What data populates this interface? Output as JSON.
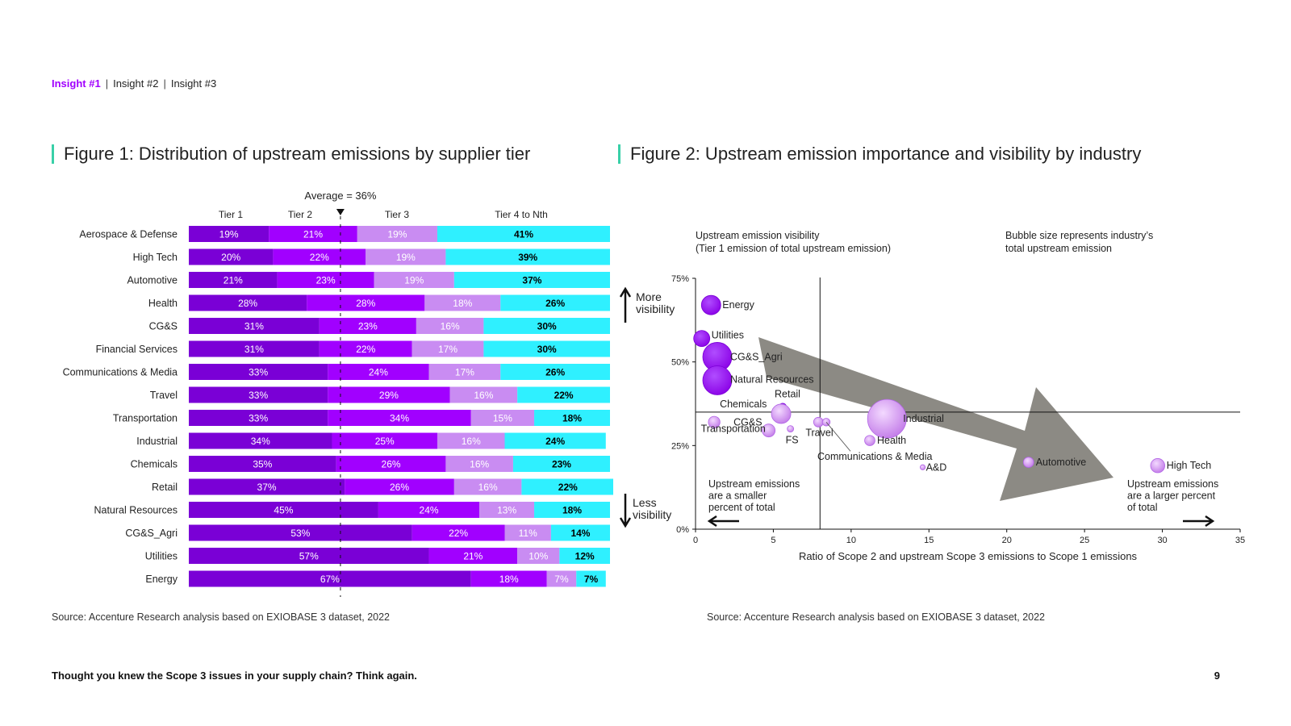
{
  "nav": {
    "active": "Insight #1",
    "items": [
      "Insight #2",
      "Insight #3"
    ]
  },
  "figure1": {
    "title": "Figure 1: Distribution of upstream emissions by supplier tier",
    "source": "Source: Accenture Research analysis based on EXIOBASE 3 dataset, 2022"
  },
  "figure2": {
    "title": "Figure 2: Upstream emission importance and visibility by industry",
    "source": "Source: Accenture Research analysis based on EXIOBASE 3 dataset, 2022"
  },
  "footer": {
    "text": "Thought you knew the Scope 3 issues in your supply chain? Think again.",
    "page": "9"
  },
  "colors": {
    "tier1": "#7a00d6",
    "tier2": "#a100ff",
    "tier3": "#c98cf2",
    "tier4": "#2ff0ff",
    "accent": "#a100ff",
    "titleBar": "#39d0a8",
    "arrow": "#8c8a84"
  },
  "chart_data": [
    {
      "type": "bar",
      "orientation": "horizontal-stacked-100",
      "title": "Figure 1: Distribution of upstream emissions by supplier tier",
      "average_label": "Average = 36%",
      "average_value": 36,
      "series_names": [
        "Tier 1",
        "Tier 2",
        "Tier 3",
        "Tier 4 to Nth"
      ],
      "categories": [
        "Aerospace & Defense",
        "High Tech",
        "Automotive",
        "Health",
        "CG&S",
        "Financial Services",
        "Communications & Media",
        "Travel",
        "Transportation",
        "Industrial",
        "Chemicals",
        "Retail",
        "Natural Resources",
        "CG&S_Agri",
        "Utilities",
        "Energy"
      ],
      "series": [
        {
          "name": "Tier 1",
          "values": [
            19,
            20,
            21,
            28,
            31,
            31,
            33,
            33,
            33,
            34,
            35,
            37,
            45,
            53,
            57,
            67
          ]
        },
        {
          "name": "Tier 2",
          "values": [
            21,
            22,
            23,
            28,
            23,
            22,
            24,
            29,
            34,
            25,
            26,
            26,
            24,
            22,
            21,
            18
          ]
        },
        {
          "name": "Tier 3",
          "values": [
            19,
            19,
            19,
            18,
            16,
            17,
            17,
            16,
            15,
            16,
            16,
            16,
            13,
            11,
            10,
            7
          ]
        },
        {
          "name": "Tier 4 to Nth",
          "values": [
            41,
            39,
            37,
            26,
            30,
            30,
            26,
            22,
            18,
            24,
            23,
            22,
            18,
            14,
            12,
            7
          ]
        }
      ]
    },
    {
      "type": "scatter",
      "subtype": "bubble",
      "title": "Figure 2: Upstream emission importance and visibility by industry",
      "xlabel": "Ratio of Scope 2 and upstream Scope 3 emissions to Scope 1 emissions",
      "ylabel_lines": [
        "Upstream emission visibility",
        "(Tier 1 emission of total upstream emission)"
      ],
      "bubble_note_lines": [
        "Bubble size represents industry’s",
        "total upstream emission"
      ],
      "xlim": [
        0,
        35
      ],
      "ylim": [
        0,
        75
      ],
      "x_ticks": [
        "0",
        "5",
        "10",
        "15",
        "20",
        "25",
        "30",
        "35"
      ],
      "x_tick_values": [
        0,
        5,
        10,
        15,
        20,
        25,
        30,
        35
      ],
      "y_ticks": [
        "0%",
        "25%",
        "50%",
        "75%"
      ],
      "y_tick_values": [
        0,
        25,
        50,
        75
      ],
      "ref_x": 8,
      "ref_y": 35,
      "more_visibility": [
        "More",
        "visibility"
      ],
      "less_visibility": [
        "Less",
        "visibility"
      ],
      "left_note": [
        "Upstream emissions",
        "are a smaller",
        "percent of total"
      ],
      "right_note": [
        "Upstream emissions",
        "are a larger percent",
        "of total"
      ],
      "points": [
        {
          "label": "Energy",
          "x": 1,
          "y": 67,
          "size": 3
        },
        {
          "label": "Utilities",
          "x": 0.4,
          "y": 57,
          "size": 2.5
        },
        {
          "label": "CG&S_Agri",
          "x": 1.4,
          "y": 51.5,
          "size": 4.5
        },
        {
          "label": "Natural Resources",
          "x": 1.4,
          "y": 44.5,
          "size": 4.5
        },
        {
          "label": "Retail",
          "x": 5.6,
          "y": 36.5,
          "size": 1.2
        },
        {
          "label": "Chemicals",
          "x": 5.5,
          "y": 34.5,
          "size": 3
        },
        {
          "label": "CG&S",
          "x": 1.2,
          "y": 32,
          "size": 1.8
        },
        {
          "label": "Transportation",
          "x": 4.7,
          "y": 29.5,
          "size": 2
        },
        {
          "label": "FS",
          "x": 6.1,
          "y": 30,
          "size": 1
        },
        {
          "label": "Travel",
          "x": 7.9,
          "y": 32,
          "size": 1.5
        },
        {
          "label": "Communications & Media",
          "x": 8.4,
          "y": 32,
          "size": 1.2
        },
        {
          "label": "Industrial",
          "x": 12.3,
          "y": 33,
          "size": 6
        },
        {
          "label": "Health",
          "x": 11.2,
          "y": 26.5,
          "size": 1.6
        },
        {
          "label": "A&D",
          "x": 14.6,
          "y": 18.5,
          "size": 0.8
        },
        {
          "label": "Automotive",
          "x": 21.4,
          "y": 20,
          "size": 1.6
        },
        {
          "label": "High Tech",
          "x": 29.7,
          "y": 19,
          "size": 2.2
        }
      ]
    }
  ]
}
